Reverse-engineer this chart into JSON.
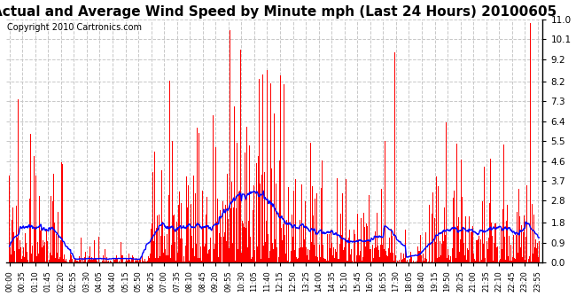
{
  "title": "Actual and Average Wind Speed by Minute mph (Last 24 Hours) 20100605",
  "copyright": "Copyright 2010 Cartronics.com",
  "yticks": [
    0.0,
    0.9,
    1.8,
    2.8,
    3.7,
    4.6,
    5.5,
    6.4,
    7.3,
    8.2,
    9.2,
    10.1,
    11.0
  ],
  "ymax": 11.0,
  "ymin": 0.0,
  "bar_color": "#ff0000",
  "line_color": "#0000ff",
  "bg_color": "#ffffff",
  "plot_bg_color": "#ffffff",
  "grid_color": "#c8c8c8",
  "title_fontsize": 11,
  "copyright_fontsize": 7,
  "xtick_interval_minutes": 35,
  "total_minutes": 1440,
  "bar_width": 1.0,
  "seed": 1234
}
